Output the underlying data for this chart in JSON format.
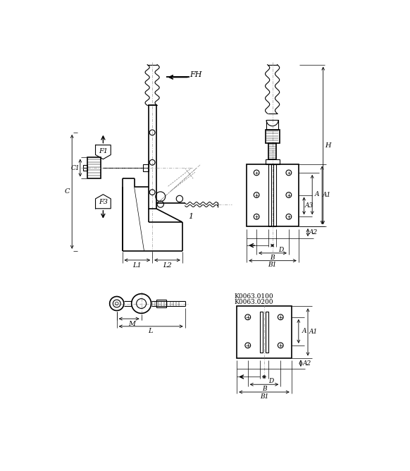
{
  "bg_color": "#ffffff",
  "line_color": "#000000",
  "figsize": [
    5.82,
    6.68
  ],
  "dpi": 100,
  "labels": {
    "FH": "FH",
    "F1": "F1",
    "F3": "F3",
    "C1": "C1",
    "C": "C",
    "L1": "L1",
    "L2": "L2",
    "H": "H",
    "A": "A",
    "A1": "A1",
    "A2": "A2",
    "A3": "A3",
    "B": "B",
    "B1": "B1",
    "D": "D",
    "M": "M",
    "L": "L",
    "num1": "1",
    "k1": "K0063.0100",
    "k2": "K0063.0200"
  }
}
